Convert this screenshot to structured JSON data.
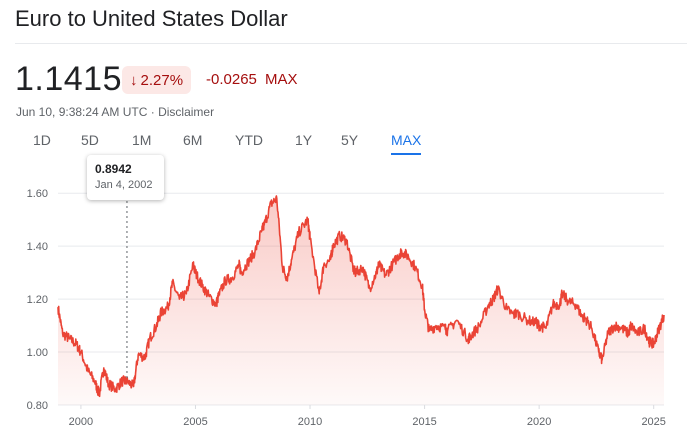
{
  "header": {
    "title": "Euro to United States Dollar"
  },
  "quote": {
    "price": "1.1415",
    "change_percent": "2.27%",
    "change_direction_icon": "arrow-down-icon",
    "change_absolute": "-0.0265",
    "change_range": "MAX",
    "timestamp": "Jun 10, 9:38:24 AM UTC",
    "separator": "·",
    "disclaimer": "Disclaimer"
  },
  "range_tabs": [
    "1D",
    "5D",
    "1M",
    "6M",
    "YTD",
    "1Y",
    "5Y",
    "MAX"
  ],
  "selected_tab": "MAX",
  "tooltip": {
    "value": "0.8942",
    "date": "Jan 4, 2002"
  },
  "colors": {
    "line": "#ea4335",
    "negative": "#a50e0e",
    "negative_bg": "#fce8e6",
    "active_tab": "#1a73e8"
  },
  "chart_data": {
    "type": "area",
    "x_ticks": [
      "2000",
      "2005",
      "2010",
      "2015",
      "2020",
      "2025"
    ],
    "y_ticks": [
      "0.80",
      "1.00",
      "1.20",
      "1.40",
      "1.60"
    ],
    "ylim": [
      0.8,
      1.65
    ],
    "xlim": [
      1999.0,
      2025.45
    ],
    "grid": true,
    "x": [
      1999.0,
      1999.2,
      1999.5,
      1999.8,
      2000.0,
      2000.3,
      2000.6,
      2000.8,
      2001.0,
      2001.2,
      2001.5,
      2001.8,
      2002.0,
      2002.3,
      2002.5,
      2002.8,
      2003.0,
      2003.3,
      2003.5,
      2003.8,
      2004.0,
      2004.3,
      2004.6,
      2004.9,
      2005.0,
      2005.3,
      2005.6,
      2005.9,
      2006.0,
      2006.3,
      2006.6,
      2006.9,
      2007.0,
      2007.3,
      2007.6,
      2007.9,
      2008.0,
      2008.3,
      2008.55,
      2008.8,
      2009.0,
      2009.2,
      2009.5,
      2009.9,
      2010.0,
      2010.4,
      2010.6,
      2010.9,
      2011.0,
      2011.3,
      2011.6,
      2011.9,
      2012.0,
      2012.3,
      2012.6,
      2012.9,
      2013.0,
      2013.3,
      2013.6,
      2013.9,
      2014.0,
      2014.3,
      2014.6,
      2014.9,
      2015.0,
      2015.2,
      2015.5,
      2015.9,
      2016.0,
      2016.4,
      2016.9,
      2017.0,
      2017.4,
      2017.8,
      2018.0,
      2018.2,
      2018.6,
      2018.9,
      2019.0,
      2019.5,
      2019.9,
      2020.0,
      2020.3,
      2020.6,
      2020.9,
      2021.0,
      2021.3,
      2021.6,
      2021.9,
      2022.0,
      2022.3,
      2022.6,
      2022.75,
      2023.0,
      2023.3,
      2023.6,
      2023.9,
      2024.0,
      2024.3,
      2024.6,
      2024.8,
      2025.0,
      2025.2,
      2025.45
    ],
    "values": [
      1.17,
      1.07,
      1.05,
      1.03,
      1.0,
      0.93,
      0.89,
      0.84,
      0.94,
      0.88,
      0.86,
      0.89,
      0.89,
      0.87,
      0.99,
      0.98,
      1.05,
      1.1,
      1.15,
      1.17,
      1.26,
      1.2,
      1.22,
      1.33,
      1.3,
      1.25,
      1.21,
      1.18,
      1.21,
      1.27,
      1.28,
      1.33,
      1.3,
      1.34,
      1.38,
      1.46,
      1.48,
      1.56,
      1.58,
      1.32,
      1.28,
      1.35,
      1.45,
      1.5,
      1.43,
      1.22,
      1.33,
      1.35,
      1.4,
      1.44,
      1.42,
      1.31,
      1.3,
      1.32,
      1.24,
      1.3,
      1.33,
      1.29,
      1.33,
      1.37,
      1.38,
      1.36,
      1.32,
      1.25,
      1.16,
      1.08,
      1.1,
      1.09,
      1.08,
      1.12,
      1.05,
      1.06,
      1.1,
      1.18,
      1.2,
      1.24,
      1.16,
      1.14,
      1.15,
      1.12,
      1.11,
      1.1,
      1.09,
      1.18,
      1.18,
      1.22,
      1.19,
      1.18,
      1.13,
      1.13,
      1.09,
      1.0,
      0.97,
      1.07,
      1.1,
      1.09,
      1.07,
      1.1,
      1.07,
      1.09,
      1.04,
      1.03,
      1.08,
      1.14
    ],
    "tooltip_x": 2002.01,
    "tooltip_y": 0.8942
  }
}
